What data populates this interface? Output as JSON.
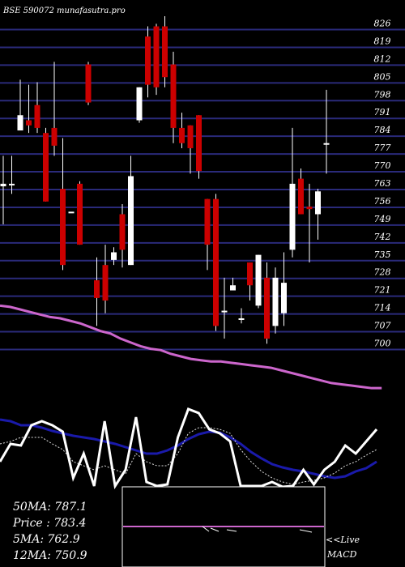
{
  "chart_data": {
    "type": "candlestick",
    "title": "BSE 590072 munafasutra.pro",
    "ylim": [
      696,
      830
    ],
    "yticks": [
      826,
      819,
      812,
      805,
      798,
      791,
      784,
      777,
      770,
      763,
      756,
      749,
      742,
      735,
      728,
      721,
      714,
      707,
      700
    ],
    "candles": [
      {
        "open": 763,
        "close": 764,
        "high": 775,
        "low": 748
      },
      {
        "open": 764,
        "close": 764,
        "high": 775,
        "low": 760
      },
      {
        "open": 785,
        "close": 791,
        "high": 805,
        "low": 786
      },
      {
        "open": 789,
        "close": 787,
        "high": 803,
        "low": 784
      },
      {
        "open": 795,
        "close": 786,
        "high": 804,
        "low": 784
      },
      {
        "open": 784,
        "close": 757,
        "high": 786,
        "low": 757
      },
      {
        "open": 786,
        "close": 779,
        "high": 812,
        "low": 775
      },
      {
        "open": 762,
        "close": 732,
        "high": 782,
        "low": 730
      },
      {
        "open": 753,
        "close": 753,
        "high": 753,
        "low": 753
      },
      {
        "open": 764,
        "close": 740,
        "high": 765,
        "low": 740
      },
      {
        "open": 811,
        "close": 796,
        "high": 812,
        "low": 795
      },
      {
        "open": 726,
        "close": 719,
        "high": 735,
        "low": 708
      },
      {
        "open": 732,
        "close": 718,
        "high": 740,
        "low": 713
      },
      {
        "open": 734,
        "close": 737,
        "high": 739,
        "low": 732
      },
      {
        "open": 752,
        "close": 738,
        "high": 756,
        "low": 731
      },
      {
        "open": 732,
        "close": 767,
        "high": 775,
        "low": 732
      },
      {
        "open": 789,
        "close": 802,
        "high": 802,
        "low": 788
      },
      {
        "open": 822,
        "close": 803,
        "high": 826,
        "low": 798
      },
      {
        "open": 826,
        "close": 802,
        "high": 827,
        "low": 799
      },
      {
        "open": 826,
        "close": 806,
        "high": 830,
        "low": 802
      },
      {
        "open": 811,
        "close": 786,
        "high": 816,
        "low": 780
      },
      {
        "open": 786,
        "close": 780,
        "high": 792,
        "low": 778
      },
      {
        "open": 787,
        "close": 778,
        "high": 787,
        "low": 768
      },
      {
        "open": 791,
        "close": 769,
        "high": 791,
        "low": 766
      },
      {
        "open": 758,
        "close": 740,
        "high": 758,
        "low": 730
      },
      {
        "open": 758,
        "close": 708,
        "high": 760,
        "low": 706
      },
      {
        "open": 714,
        "close": 714,
        "high": 727,
        "low": 703
      },
      {
        "open": 722,
        "close": 724,
        "high": 727,
        "low": 722
      },
      {
        "open": 711,
        "close": 711,
        "high": 715,
        "low": 709
      },
      {
        "open": 733,
        "close": 724,
        "high": 733,
        "low": 718
      },
      {
        "open": 716,
        "close": 736,
        "high": 736,
        "low": 715
      },
      {
        "open": 727,
        "close": 703,
        "high": 733,
        "low": 701
      },
      {
        "open": 708,
        "close": 727,
        "high": 731,
        "low": 705
      },
      {
        "open": 713,
        "close": 725,
        "high": 737,
        "low": 708
      },
      {
        "open": 738,
        "close": 764,
        "high": 786,
        "low": 735
      },
      {
        "open": 766,
        "close": 752,
        "high": 770,
        "low": 752
      },
      {
        "open": 755,
        "close": 754,
        "high": 764,
        "low": 733
      },
      {
        "open": 752,
        "close": 761,
        "high": 762,
        "low": 742
      },
      {
        "open": 780,
        "close": 780,
        "high": 801,
        "low": 768
      }
    ],
    "ma_series": {
      "name": "50MA",
      "values": [
        716,
        715.5,
        714.5,
        713.5,
        712.5,
        711.5,
        711,
        710,
        709,
        707.5,
        706,
        705,
        703,
        701.5,
        700,
        699,
        698.5,
        697,
        696,
        695,
        694.5,
        694,
        694,
        693.5,
        693,
        692.5,
        692,
        691.5,
        690.5,
        689.5,
        688.5,
        687.5,
        686.5,
        685.5,
        685,
        684.5,
        684,
        683.5,
        683.5
      ]
    },
    "indicator_panel": {
      "lines": {
        "white": [
          570,
          548,
          550,
          525,
          520,
          525,
          533,
          590,
          560,
          600,
          520,
          600,
          580,
          515,
          595,
          600,
          598,
          540,
          505,
          510,
          530,
          535,
          545,
          600,
          600,
          600,
          595,
          601,
          600,
          580,
          598,
          580,
          570,
          550,
          560,
          545,
          530
        ],
        "blue": [
          518,
          520,
          525,
          525,
          528,
          532,
          535,
          538,
          540,
          542,
          545,
          548,
          552,
          556,
          560,
          560,
          556,
          550,
          542,
          536,
          533,
          534,
          540,
          548,
          558,
          566,
          573,
          577,
          580,
          582,
          585,
          588,
          590,
          588,
          582,
          578,
          570
        ],
        "dotted": [
          548,
          545,
          540,
          540,
          540,
          548,
          555,
          570,
          575,
          580,
          575,
          580,
          585,
          560,
          570,
          575,
          575,
          560,
          535,
          528,
          528,
          530,
          535,
          555,
          570,
          582,
          590,
          595,
          598,
          595,
          593,
          590,
          584,
          575,
          570,
          562,
          555
        ]
      }
    },
    "macd_panel": {
      "baseline": 650,
      "segments": [
        {
          "x1": 250,
          "y1": 650,
          "x2": 258,
          "y2": 656
        },
        {
          "x1": 260,
          "y1": 652,
          "x2": 270,
          "y2": 656
        },
        {
          "x1": 280,
          "y1": 654,
          "x2": 292,
          "y2": 656
        },
        {
          "x1": 370,
          "y1": 654,
          "x2": 385,
          "y2": 657
        }
      ]
    },
    "legend": [
      {
        "label": "50MA",
        "value": "787.1"
      },
      {
        "label": "Price  ",
        "value": "783.4"
      },
      {
        "label": "5MA",
        "value": "762.9"
      },
      {
        "label": "12MA",
        "value": "750.9"
      }
    ],
    "live_label": "<<Live",
    "macd_label": "MACD",
    "colors": {
      "bull": "#ffffff",
      "bear": "#cc0000",
      "grid": "#2a2a7a",
      "ma": "#cc66cc",
      "blue": "#1a1aaa",
      "text": "#ffffff"
    }
  }
}
